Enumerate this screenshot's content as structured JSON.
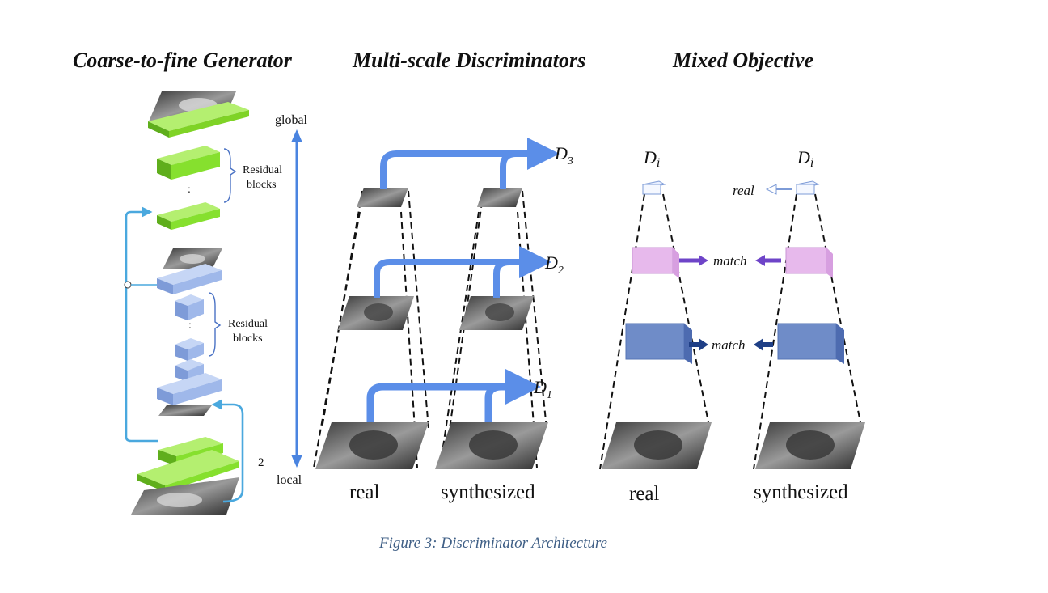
{
  "headings": {
    "generator": "Coarse-to-fine Generator",
    "discriminators": "Multi-scale Discriminators",
    "objective": "Mixed Objective"
  },
  "generator": {
    "residual_top": [
      "Residual",
      "blocks"
    ],
    "residual_bottom": [
      "Residual",
      "blocks"
    ],
    "dots": ":",
    "downsample": "2",
    "scale_top": "global",
    "scale_bottom": "local"
  },
  "multiscale": {
    "discriminators": [
      {
        "name": "D",
        "sub": "3"
      },
      {
        "name": "D",
        "sub": "2"
      },
      {
        "name": "D",
        "sub": "1"
      }
    ],
    "inputs": [
      "real",
      "synthesized"
    ]
  },
  "objective": {
    "discriminator": {
      "name": "D",
      "sub": "i"
    },
    "real_label": "real",
    "match_label": "match",
    "inputs": [
      "real",
      "synthesized"
    ]
  },
  "colors": {
    "green": "#86e02e",
    "blue_block": "#9fb8ea",
    "arrow_blue": "#5b8ee8",
    "light_arrow": "#4aa8de",
    "pink": "#e7b9ec",
    "purple": "#6e44c8",
    "navy_block": "#6f8cc8",
    "navy_arrow": "#1f3f86"
  },
  "caption": "Figure 3: Discriminator Architecture"
}
